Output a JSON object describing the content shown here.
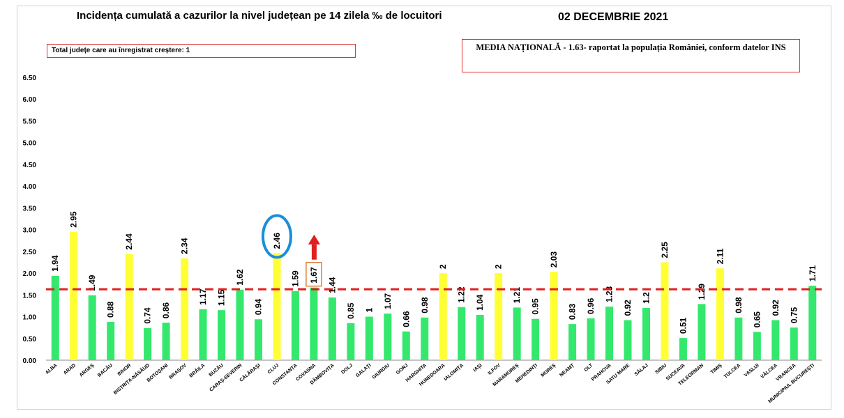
{
  "header": {
    "title": "Incidența cumulată a cazurilor la nivel județean pe 14 zilela ‰ de locuitori",
    "date": "02 DECEMBRIE 2021"
  },
  "info": {
    "counties_increase": "Total județe care au înregistrat creștere: 1",
    "national_average": "MEDIA NAȚIONALĂ - 1.63- raportat la populația României, conform datelor INS"
  },
  "colors": {
    "normal": "#33e86d",
    "high": "#ffff33",
    "reference_line": "#e01f1f",
    "highlight_circle": "#1a8fd9",
    "arrow": "#e01f1f"
  },
  "chart_data": {
    "type": "bar",
    "title": "Incidența cumulată a cazurilor la nivel județean pe 14 zilela ‰ de locuitori",
    "ylim": [
      0,
      6.5
    ],
    "yticks": [
      "0.00",
      "0.50",
      "1.00",
      "1.50",
      "2.00",
      "2.50",
      "3.00",
      "3.50",
      "4.00",
      "4.50",
      "5.00",
      "5.50",
      "6.00",
      "6.50"
    ],
    "reference_line": 1.63,
    "categories": [
      "ALBA",
      "ARAD",
      "ARGEȘ",
      "BACĂU",
      "BIHOR",
      "BISTRIȚA-NĂSĂUD",
      "BOTOȘANI",
      "BRAȘOV",
      "BRĂILA",
      "BUZĂU",
      "CARAȘ-SEVERIN",
      "CĂLĂRAȘI",
      "CLUJ",
      "CONSTANȚA",
      "COVASNA",
      "DÂMBOVIȚA",
      "DOLJ",
      "GALAȚI",
      "GIURGIU",
      "GORJ",
      "HARGHITA",
      "HUNEDOARA",
      "IALOMIȚA",
      "IAȘI",
      "ILFOV",
      "MARAMUREȘ",
      "MEHEDINȚI",
      "MUREȘ",
      "NEAMȚ",
      "OLT",
      "PRAHOVA",
      "SATU MARE",
      "SĂLAJ",
      "SIBIU",
      "SUCEAVA",
      "TELEORMAN",
      "TIMIȘ",
      "TULCEA",
      "VASLUI",
      "VÂLCEA",
      "VRANCEA",
      "MUNICIPIUL BUCUREȘTI"
    ],
    "values": [
      1.94,
      2.95,
      1.49,
      0.88,
      2.44,
      0.74,
      0.86,
      2.34,
      1.17,
      1.15,
      1.62,
      0.94,
      2.46,
      1.59,
      1.67,
      1.44,
      0.85,
      1,
      1.07,
      0.66,
      0.98,
      2,
      1.22,
      1.04,
      2,
      1.21,
      0.95,
      2.03,
      0.83,
      0.96,
      1.23,
      0.92,
      1.2,
      2.25,
      0.51,
      1.29,
      2.11,
      0.98,
      0.65,
      0.92,
      0.75,
      1.71
    ],
    "labels": [
      "1.94",
      "2.95",
      "1.49",
      "0.88",
      "2.44",
      "0.74",
      "0.86",
      "2.34",
      "1.17",
      "1.15",
      "1.62",
      "0.94",
      "2.46",
      "1.59",
      "1.67",
      "1.44",
      "0.85",
      "1",
      "1.07",
      "0.66",
      "0.98",
      "2",
      "1.22",
      "1.04",
      "2",
      "1.21",
      "0.95",
      "2.03",
      "0.83",
      "0.96",
      "1.23",
      "0.92",
      "1.2",
      "2.25",
      "0.51",
      "1.29",
      "2.11",
      "0.98",
      "0.65",
      "0.92",
      "0.75",
      "1.71"
    ],
    "highlight": [
      "normal",
      "high",
      "normal",
      "normal",
      "high",
      "normal",
      "normal",
      "high",
      "normal",
      "normal",
      "normal",
      "normal",
      "high",
      "normal",
      "normal",
      "normal",
      "normal",
      "normal",
      "normal",
      "normal",
      "normal",
      "high",
      "normal",
      "normal",
      "high",
      "normal",
      "normal",
      "high",
      "normal",
      "normal",
      "normal",
      "normal",
      "normal",
      "high",
      "normal",
      "normal",
      "high",
      "normal",
      "normal",
      "normal",
      "normal",
      "normal"
    ],
    "circled": "CLUJ",
    "boxed": "COVASNA",
    "increase_arrow": "COVASNA"
  }
}
